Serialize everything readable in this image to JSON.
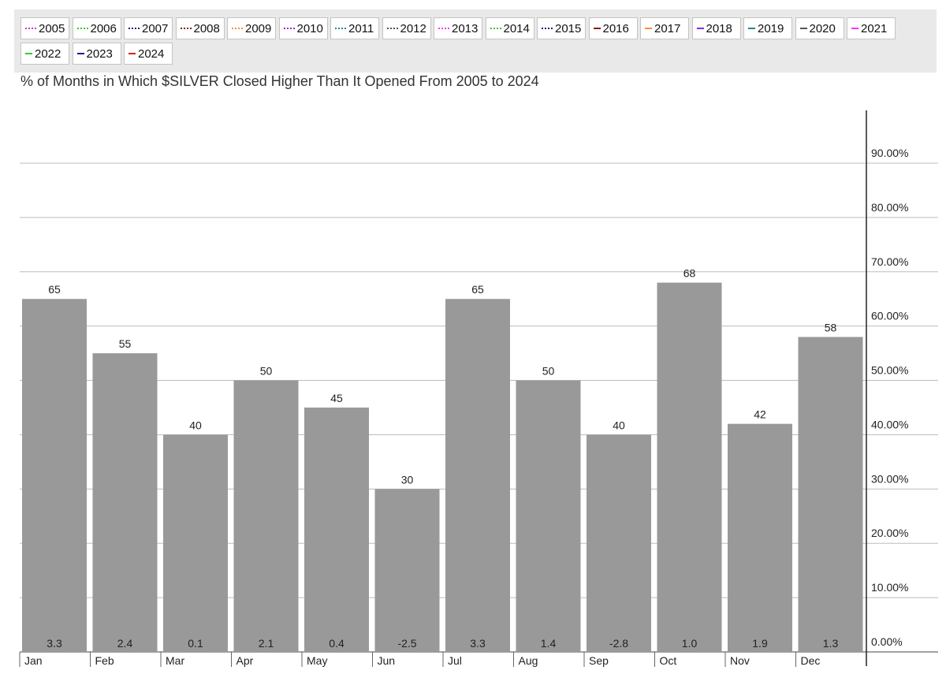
{
  "legend": {
    "items": [
      {
        "label": "2005",
        "color": "#cc33cc",
        "style": "dotted"
      },
      {
        "label": "2006",
        "color": "#33cc33",
        "style": "dotted"
      },
      {
        "label": "2007",
        "color": "#1a1a80",
        "style": "dotted"
      },
      {
        "label": "2008",
        "color": "#8b1a1a",
        "style": "dotted"
      },
      {
        "label": "2009",
        "color": "#ff8c3a",
        "style": "dotted"
      },
      {
        "label": "2010",
        "color": "#8a2be2",
        "style": "dotted"
      },
      {
        "label": "2011",
        "color": "#1f8b8b",
        "style": "dotted"
      },
      {
        "label": "2012",
        "color": "#555555",
        "style": "dotted"
      },
      {
        "label": "2013",
        "color": "#ff33ff",
        "style": "dotted"
      },
      {
        "label": "2014",
        "color": "#33cc33",
        "style": "dotted"
      },
      {
        "label": "2015",
        "color": "#1a1a80",
        "style": "dotted"
      },
      {
        "label": "2016",
        "color": "#8b1a1a",
        "style": "solid"
      },
      {
        "label": "2017",
        "color": "#ff8c3a",
        "style": "solid"
      },
      {
        "label": "2018",
        "color": "#8a2be2",
        "style": "solid"
      },
      {
        "label": "2019",
        "color": "#1f8b8b",
        "style": "solid"
      },
      {
        "label": "2020",
        "color": "#555555",
        "style": "solid"
      },
      {
        "label": "2021",
        "color": "#ff33ff",
        "style": "solid"
      },
      {
        "label": "2022",
        "color": "#33cc33",
        "style": "solid"
      },
      {
        "label": "2023",
        "color": "#1a1a9a",
        "style": "solid"
      },
      {
        "label": "2024",
        "color": "#e02020",
        "style": "solid"
      }
    ]
  },
  "chart_data": {
    "type": "bar",
    "title": "% of Months in Which $SILVER Closed Higher Than It Opened From 2005 to 2024",
    "categories": [
      "Jan",
      "Feb",
      "Mar",
      "Apr",
      "May",
      "Jun",
      "Jul",
      "Aug",
      "Sep",
      "Oct",
      "Nov",
      "Dec"
    ],
    "values": [
      65,
      55,
      40,
      50,
      45,
      30,
      65,
      50,
      40,
      68,
      42,
      58
    ],
    "bar_labels": [
      "65",
      "55",
      "40",
      "50",
      "45",
      "30",
      "65",
      "50",
      "40",
      "68",
      "42",
      "58"
    ],
    "secondary_values": [
      "3.3",
      "2.4",
      "0.1",
      "2.1",
      "0.4",
      "-2.5",
      "3.3",
      "1.4",
      "-2.8",
      "1.0",
      "1.9",
      "1.3"
    ],
    "y_ticks": [
      "0.00%",
      "10.00%",
      "20.00%",
      "30.00%",
      "40.00%",
      "50.00%",
      "60.00%",
      "70.00%",
      "80.00%",
      "90.00%"
    ],
    "ylim": [
      0,
      100
    ],
    "y_axis_side": "right",
    "grid": true,
    "legend_position": "top",
    "bar_color": "#999999"
  }
}
